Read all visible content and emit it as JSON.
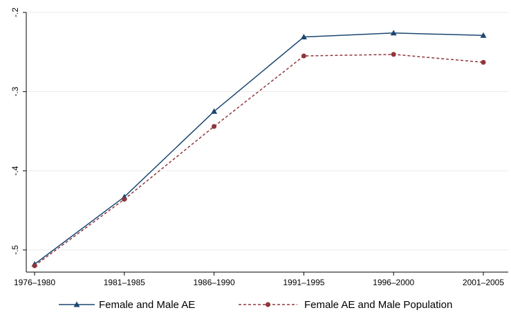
{
  "chart_data": {
    "type": "line",
    "categories": [
      "1976–1980",
      "1981–1985",
      "1986–1990",
      "1991–1995",
      "1996–2000",
      "2001–2005"
    ],
    "series": [
      {
        "name": "Female and Male AE",
        "color": "#1a476f",
        "marker": "triangle",
        "dash": "solid",
        "values": [
          -0.518,
          -0.433,
          -0.325,
          -0.231,
          -0.226,
          -0.229
        ]
      },
      {
        "name": "Female AE and Male Population",
        "color": "#90353b",
        "marker": "circle",
        "dash": "dashed",
        "values": [
          -0.52,
          -0.436,
          -0.344,
          -0.255,
          -0.253,
          -0.263
        ]
      }
    ],
    "ylim": [
      -0.528,
      -0.2
    ],
    "yticks": [
      {
        "value": -0.5,
        "label": "-.5"
      },
      {
        "value": -0.4,
        "label": "-.4"
      },
      {
        "value": -0.3,
        "label": "-.3"
      },
      {
        "value": -0.2,
        "label": "-.2"
      }
    ],
    "grid": true
  }
}
